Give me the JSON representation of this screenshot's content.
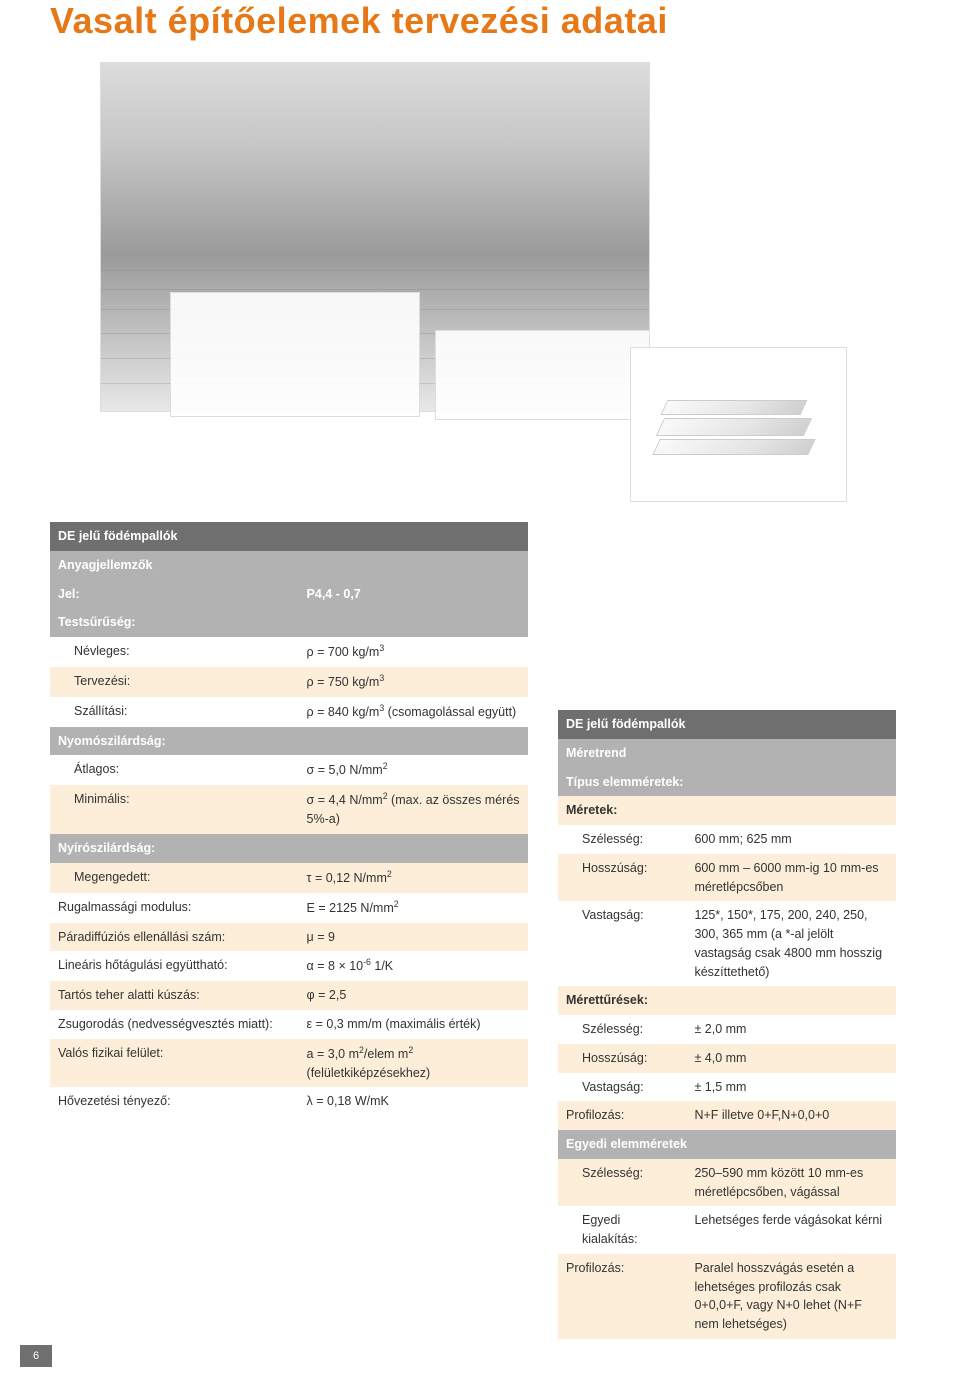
{
  "title": "Vasalt építőelemek tervezési adatai",
  "pageNumber": "6",
  "leftTable": {
    "header": "DE jelű födémpallók",
    "sections": [
      {
        "type": "gray",
        "label": "Anyagjellemzők"
      },
      {
        "type": "gray",
        "label": "Jel:",
        "value": "P4,4 - 0,7"
      },
      {
        "type": "gray",
        "label": "Testsűrűség:"
      },
      {
        "type": "light",
        "label": "Névleges:",
        "valueHtml": "ρ = 700 kg/m<sup>3</sup>",
        "indent": true
      },
      {
        "type": "accent",
        "label": "Tervezési:",
        "valueHtml": "ρ = 750 kg/m<sup>3</sup>",
        "indent": true
      },
      {
        "type": "light",
        "label": "Szállítási:",
        "valueHtml": "ρ = 840 kg/m<sup>3</sup> (csomagolással együtt)",
        "indent": true
      },
      {
        "type": "gray",
        "label": "Nyomószilárdság:"
      },
      {
        "type": "light",
        "label": "Átlagos:",
        "valueHtml": "σ = 5,0 N/mm<sup>2</sup>",
        "indent": true
      },
      {
        "type": "accent",
        "label": "Minimális:",
        "valueHtml": "σ = 4,4 N/mm<sup>2</sup> (max. az összes mérés 5%-a)",
        "indent": true
      },
      {
        "type": "gray",
        "label": "Nyírószilárdság:"
      },
      {
        "type": "accent",
        "label": "Megengedett:",
        "valueHtml": "τ = 0,12 N/mm<sup>2</sup>",
        "indent": true
      },
      {
        "type": "light",
        "label": "Rugalmassági modulus:",
        "valueHtml": "E = 2125 N/mm<sup>2</sup>"
      },
      {
        "type": "accent",
        "label": "Páradiffúziós ellenállási szám:",
        "valueHtml": "μ = 9"
      },
      {
        "type": "light",
        "label": "Lineáris hőtágulási együttható:",
        "valueHtml": "α = 8 × 10<sup>-6</sup> 1/K"
      },
      {
        "type": "accent",
        "label": "Tartós teher alatti kúszás:",
        "valueHtml": "φ = 2,5"
      },
      {
        "type": "light",
        "label": "Zsugorodás (nedvességvesztés miatt):",
        "valueHtml": "ε = 0,3 mm/m (maximális érték)"
      },
      {
        "type": "accent",
        "label": "Valós fizikai felület:",
        "valueHtml": "a = 3,0 m<sup>2</sup>/elem m<sup>2</sup> (felületkiképzésekhez)"
      },
      {
        "type": "light",
        "label": "Hővezetési tényező:",
        "valueHtml": "λ = 0,18 W/mK"
      }
    ]
  },
  "rightTable": {
    "header": "DE jelű födémpallók",
    "sections": [
      {
        "type": "gray",
        "label": "Méretrend"
      },
      {
        "type": "gray",
        "label": "Típus elemméretek:"
      },
      {
        "type": "accent",
        "label": "Méretek:",
        "bold": true
      },
      {
        "type": "light",
        "label": "Szélesség:",
        "value": "600 mm; 625 mm",
        "indent": true
      },
      {
        "type": "accent",
        "label": "Hosszúság:",
        "value": "600 mm – 6000 mm-ig 10 mm-es méretlépcsőben",
        "indent": true
      },
      {
        "type": "light",
        "label": "Vastagság:",
        "value": "125*, 150*, 175, 200, 240, 250, 300, 365 mm (a *-al jelölt vastagság csak 4800 mm hosszig készíttethető)",
        "indent": true
      },
      {
        "type": "accent",
        "label": "Mérettűrések:",
        "bold": true
      },
      {
        "type": "light",
        "label": "Szélesség:",
        "value": "± 2,0 mm",
        "indent": true
      },
      {
        "type": "accent",
        "label": "Hosszúság:",
        "value": "± 4,0 mm",
        "indent": true
      },
      {
        "type": "light",
        "label": "Vastagság:",
        "value": "± 1,5 mm",
        "indent": true
      },
      {
        "type": "accent",
        "label": "Profilozás:",
        "value": "N+F illetve 0+F,N+0,0+0"
      },
      {
        "type": "gray",
        "label": "Egyedi elemméretek"
      },
      {
        "type": "accent",
        "label": "Szélesség:",
        "value": "250–590 mm között 10 mm-es méretlépcsőben, vágással",
        "indent": true
      },
      {
        "type": "light",
        "label": "Egyedi kialakítás:",
        "value": "Lehetséges ferde vágásokat kérni",
        "indent": true
      },
      {
        "type": "accent",
        "label": "Profilozás:",
        "value": "Paralel hosszvágás esetén a lehetséges profilozás csak 0+0,0+F, vagy N+0 lehet (N+F nem lehetséges)"
      }
    ]
  }
}
